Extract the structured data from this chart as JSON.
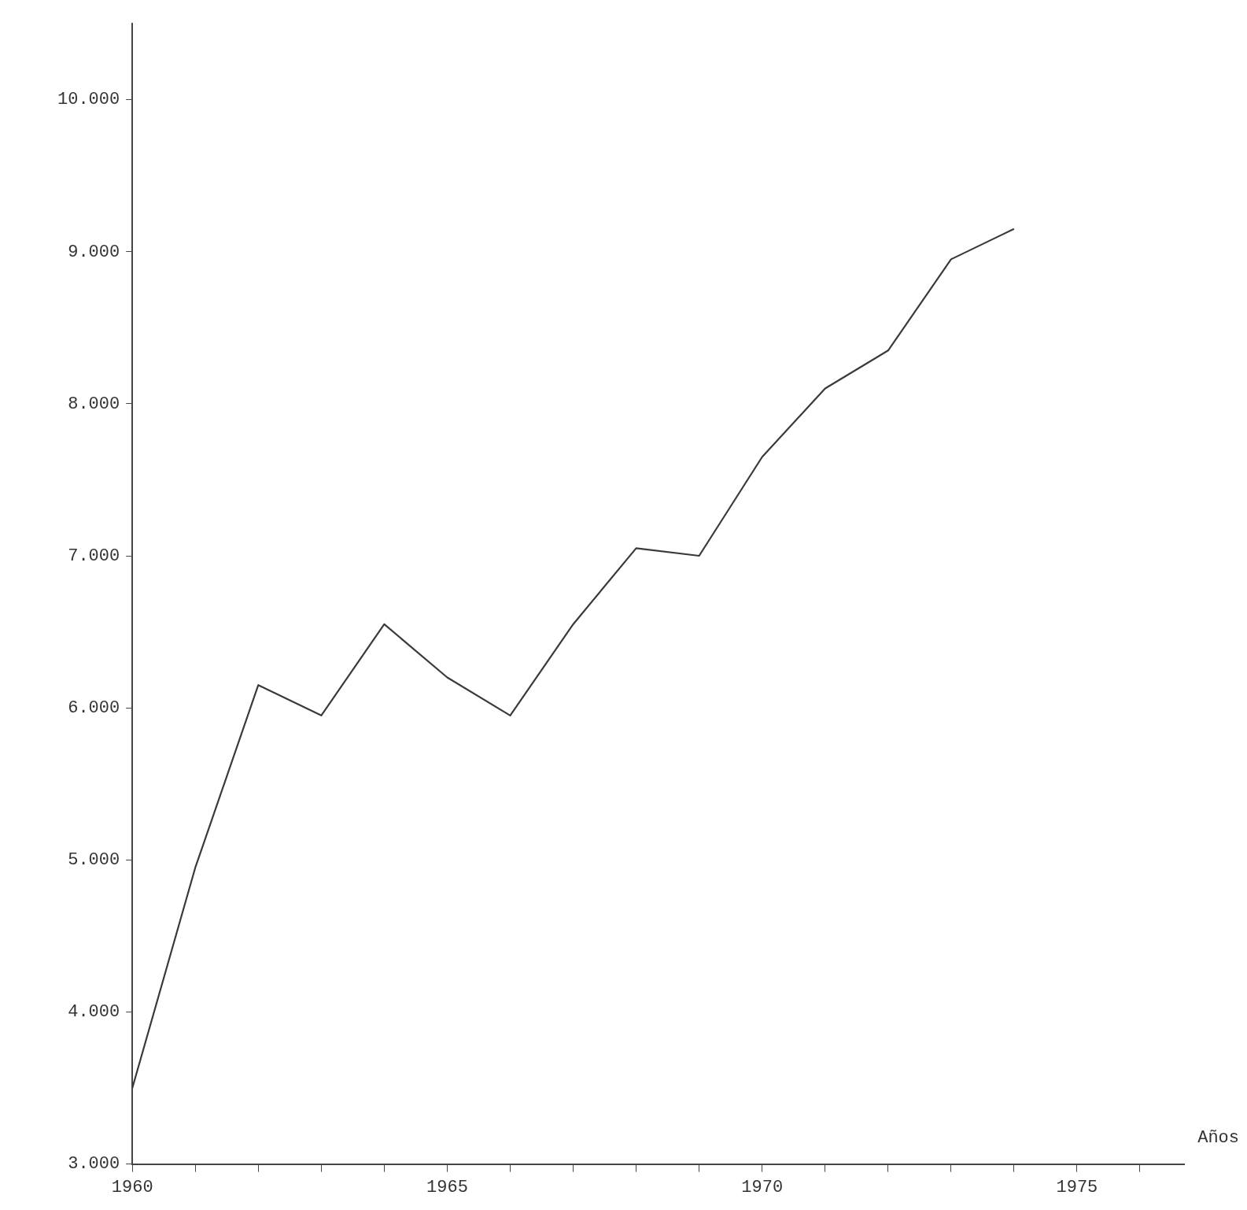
{
  "chart_data": {
    "type": "line",
    "xlabel": "Años",
    "x": [
      1960,
      1961,
      1962,
      1963,
      1964,
      1965,
      1966,
      1967,
      1968,
      1969,
      1970,
      1971,
      1972,
      1973,
      1974
    ],
    "series": [
      {
        "color": "#3a3a3a",
        "values": [
          3500,
          4950,
          6150,
          5950,
          6550,
          6200,
          5950,
          6550,
          7050,
          7000,
          7650,
          8100,
          8350,
          8950,
          9150
        ]
      }
    ],
    "xlim": [
      1960,
      1976.7
    ],
    "ylim": [
      3000,
      10500
    ],
    "xticks": [
      1960,
      {
        "value": 1961,
        "label": null
      },
      {
        "value": 1962,
        "label": null
      },
      {
        "value": 1963,
        "label": null
      },
      {
        "value": 1964,
        "label": null
      },
      1965,
      {
        "value": 1966,
        "label": null
      },
      {
        "value": 1967,
        "label": null
      },
      {
        "value": 1968,
        "label": null
      },
      {
        "value": 1969,
        "label": null
      },
      1970,
      {
        "value": 1971,
        "label": null
      },
      {
        "value": 1972,
        "label": null
      },
      {
        "value": 1973,
        "label": null
      },
      {
        "value": 1974,
        "label": null
      },
      1975,
      {
        "value": 1976,
        "label": null
      }
    ],
    "yticks": [
      {
        "value": 3000,
        "label": "3.000"
      },
      {
        "value": 4000,
        "label": "4.000"
      },
      {
        "value": 5000,
        "label": "5.000"
      },
      {
        "value": 6000,
        "label": "6.000"
      },
      {
        "value": 7000,
        "label": "7.000"
      },
      {
        "value": 8000,
        "label": "8.000"
      },
      {
        "value": 9000,
        "label": "9.000"
      },
      {
        "value": 10000,
        "label": "10.000"
      }
    ],
    "grid": false,
    "legend": false,
    "marker": "none",
    "line_style": "solid"
  }
}
